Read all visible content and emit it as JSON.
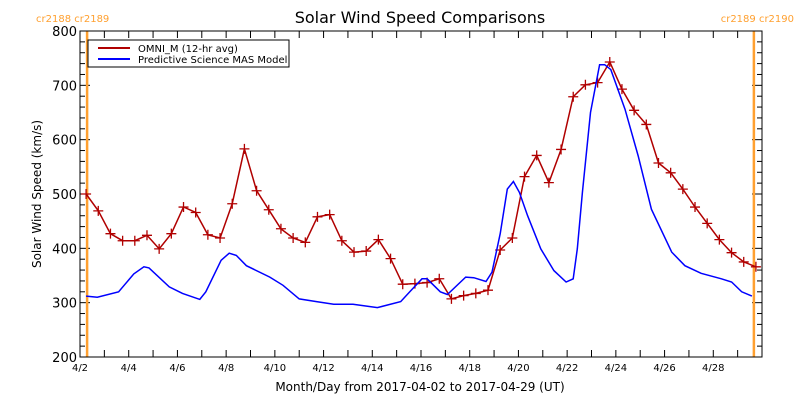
{
  "chart_data": {
    "type": "line",
    "title": "Solar Wind Speed Comparisons",
    "xlabel": "Month/Day from 2017-04-02 to 2017-04-29 (UT)",
    "ylabel": "Solar Wind Speed (km/s)",
    "xlim": [
      "2017-04-02T00:00",
      "2017-04-30T00:00"
    ],
    "ylim": [
      200,
      800
    ],
    "yticks": [
      200,
      300,
      400,
      500,
      600,
      700,
      800
    ],
    "xticks": [
      {
        "date": "2017-04-02",
        "label": "4/2"
      },
      {
        "date": "2017-04-04",
        "label": "4/4"
      },
      {
        "date": "2017-04-06",
        "label": "4/6"
      },
      {
        "date": "2017-04-08",
        "label": "4/8"
      },
      {
        "date": "2017-04-10",
        "label": "4/10"
      },
      {
        "date": "2017-04-12",
        "label": "4/12"
      },
      {
        "date": "2017-04-14",
        "label": "4/14"
      },
      {
        "date": "2017-04-16",
        "label": "4/16"
      },
      {
        "date": "2017-04-18",
        "label": "4/18"
      },
      {
        "date": "2017-04-20",
        "label": "4/20"
      },
      {
        "date": "2017-04-22",
        "label": "4/22"
      },
      {
        "date": "2017-04-24",
        "label": "4/24"
      },
      {
        "date": "2017-04-26",
        "label": "4/26"
      },
      {
        "date": "2017-04-28",
        "label": "4/28"
      }
    ],
    "grid": false,
    "legend_position": "top-left",
    "markers": [
      {
        "date": "2017-04-02T07:00",
        "color": "#ffa030",
        "label": "cr2188 cr2189",
        "side": "left"
      },
      {
        "date": "2017-04-29T16:00",
        "color": "#ffa030",
        "label": "cr2189 cr2190",
        "side": "right"
      }
    ],
    "series": [
      {
        "name": "OMNI_M (12-hr avg)",
        "color": "#b00000",
        "marker": "plus",
        "x": [
          "2017-04-02T06:00",
          "2017-04-02T18:00",
          "2017-04-03T06:00",
          "2017-04-03T18:00",
          "2017-04-04T06:00",
          "2017-04-04T18:00",
          "2017-04-05T06:00",
          "2017-04-05T18:00",
          "2017-04-06T06:00",
          "2017-04-06T18:00",
          "2017-04-07T06:00",
          "2017-04-07T18:00",
          "2017-04-08T06:00",
          "2017-04-08T18:00",
          "2017-04-09T06:00",
          "2017-04-09T18:00",
          "2017-04-10T06:00",
          "2017-04-10T18:00",
          "2017-04-11T06:00",
          "2017-04-11T18:00",
          "2017-04-12T06:00",
          "2017-04-12T18:00",
          "2017-04-13T06:00",
          "2017-04-13T18:00",
          "2017-04-14T06:00",
          "2017-04-14T18:00",
          "2017-04-15T06:00",
          "2017-04-15T18:00",
          "2017-04-16T06:00",
          "2017-04-16T18:00",
          "2017-04-17T06:00",
          "2017-04-17T18:00",
          "2017-04-18T06:00",
          "2017-04-18T18:00",
          "2017-04-19T06:00",
          "2017-04-19T18:00",
          "2017-04-20T06:00",
          "2017-04-20T18:00",
          "2017-04-21T06:00",
          "2017-04-21T18:00",
          "2017-04-22T06:00",
          "2017-04-22T18:00",
          "2017-04-23T06:00",
          "2017-04-23T18:00",
          "2017-04-24T06:00",
          "2017-04-24T18:00",
          "2017-04-25T06:00",
          "2017-04-25T18:00",
          "2017-04-26T06:00",
          "2017-04-26T18:00",
          "2017-04-27T06:00",
          "2017-04-27T18:00",
          "2017-04-28T06:00",
          "2017-04-28T18:00",
          "2017-04-29T06:00",
          "2017-04-29T18:00"
        ],
        "y": [
          500,
          469,
          427,
          414,
          414,
          424,
          399,
          427,
          476,
          466,
          425,
          419,
          482,
          583,
          506,
          471,
          436,
          419,
          411,
          458,
          462,
          414,
          393,
          395,
          416,
          381,
          334,
          335,
          337,
          344,
          307,
          313,
          317,
          323,
          397,
          419,
          532,
          571,
          521,
          582,
          679,
          701,
          705,
          743,
          693,
          654,
          628,
          557,
          539,
          509,
          476,
          446,
          416,
          392,
          375,
          366
        ]
      },
      {
        "name": "Predictive Science MAS Model",
        "color": "#0000ff",
        "marker": "none",
        "x": [
          "2017-04-02T06:00",
          "2017-04-02T17:00",
          "2017-04-03T14:00",
          "2017-04-04T05:00",
          "2017-04-04T15:00",
          "2017-04-04T20:00",
          "2017-04-05T16:00",
          "2017-04-06T05:00",
          "2017-04-06T22:00",
          "2017-04-07T04:00",
          "2017-04-07T19:00",
          "2017-04-08T03:00",
          "2017-04-08T10:00",
          "2017-04-08T20:00",
          "2017-04-09T19:00",
          "2017-04-10T08:00",
          "2017-04-11T00:00",
          "2017-04-11T17:00",
          "2017-04-12T10:00",
          "2017-04-13T05:00",
          "2017-04-14T05:00",
          "2017-04-15T04:00",
          "2017-04-15T13:00",
          "2017-04-16T01:00",
          "2017-04-16T06:00",
          "2017-04-16T19:00",
          "2017-04-17T02:00",
          "2017-04-17T20:00",
          "2017-04-18T04:00",
          "2017-04-18T16:00",
          "2017-04-18T22:00",
          "2017-04-19T06:00",
          "2017-04-19T13:00",
          "2017-04-19T19:00",
          "2017-04-20T01:00",
          "2017-04-20T09:00",
          "2017-04-20T22:00",
          "2017-04-21T11:00",
          "2017-04-21T23:00",
          "2017-04-22T06:00",
          "2017-04-22T10:00",
          "2017-04-22T15:00",
          "2017-04-22T23:00",
          "2017-04-23T08:00",
          "2017-04-23T13:00",
          "2017-04-23T19:00",
          "2017-04-24T09:00",
          "2017-04-24T22:00",
          "2017-04-25T11:00",
          "2017-04-26T07:00",
          "2017-04-26T20:00",
          "2017-04-27T12:00",
          "2017-04-28T08:00",
          "2017-04-28T18:00",
          "2017-04-29T04:00",
          "2017-04-29T14:00"
        ],
        "y": [
          312,
          310,
          320,
          353,
          366,
          364,
          329,
          317,
          306,
          320,
          378,
          391,
          387,
          368,
          347,
          332,
          307,
          302,
          297,
          297,
          291,
          302,
          320,
          344,
          344,
          320,
          315,
          347,
          346,
          339,
          356,
          427,
          509,
          523,
          503,
          460,
          399,
          359,
          338,
          344,
          399,
          503,
          650,
          738,
          738,
          729,
          656,
          570,
          472,
          393,
          368,
          354,
          344,
          338,
          320,
          312
        ]
      }
    ]
  }
}
